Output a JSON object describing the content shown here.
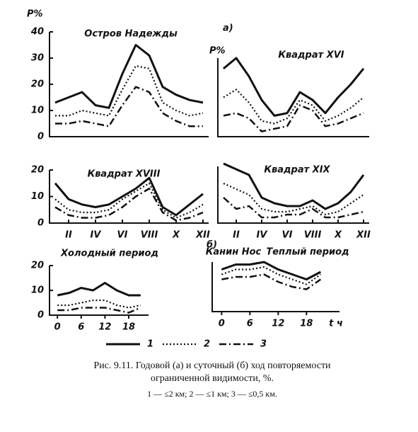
{
  "chart_data": [
    {
      "type": "line",
      "title": "Остров Надежды",
      "ylabel": "P%",
      "categories": [
        null,
        null,
        null,
        null,
        null,
        null,
        null,
        null,
        null,
        null,
        null,
        null
      ],
      "ylim": [
        0,
        40
      ],
      "yticks": [
        0,
        10,
        20,
        30,
        40
      ],
      "series": [
        {
          "name": "1",
          "color": "#111111",
          "style": "solid",
          "values": [
            13,
            15,
            17,
            12,
            11,
            24,
            35,
            31,
            19,
            16,
            14,
            13
          ]
        },
        {
          "name": "2",
          "color": "#111111",
          "style": "dotted",
          "values": [
            8,
            8,
            10,
            9,
            8,
            18,
            27,
            26,
            13,
            10,
            8,
            9
          ]
        },
        {
          "name": "3",
          "color": "#111111",
          "style": "dashdot",
          "values": [
            5,
            5,
            6,
            5,
            4,
            12,
            19,
            17,
            9,
            6,
            4,
            4
          ]
        }
      ]
    },
    {
      "type": "line",
      "title": "Квадрат XVI",
      "ylabel": "P%",
      "categories": [
        null,
        null,
        null,
        null,
        null,
        null,
        null,
        null,
        null,
        null,
        null,
        null
      ],
      "ylim": [
        0,
        30
      ],
      "series": [
        {
          "name": "1",
          "color": "#111111",
          "style": "solid",
          "values": [
            26,
            30,
            23,
            14,
            8,
            9,
            17,
            14,
            9,
            15,
            20,
            26
          ]
        },
        {
          "name": "2",
          "color": "#111111",
          "style": "dotted",
          "values": [
            15,
            18,
            13,
            6,
            5,
            7,
            14,
            12,
            6,
            8,
            11,
            15
          ]
        },
        {
          "name": "3",
          "color": "#111111",
          "style": "dashdot",
          "values": [
            8,
            9,
            7,
            2,
            3,
            4,
            12,
            10,
            4,
            5,
            7,
            9
          ]
        }
      ]
    },
    {
      "type": "line",
      "title": "Квадрат XVIII",
      "categories": [
        null,
        "II",
        null,
        "IV",
        null,
        "VI",
        null,
        "VIII",
        null,
        "X",
        null,
        "XII"
      ],
      "ylim": [
        0,
        20
      ],
      "yticks": [
        0,
        10,
        20
      ],
      "series": [
        {
          "name": "1",
          "color": "#111111",
          "style": "solid",
          "values": [
            15,
            9,
            7,
            6,
            7,
            10,
            13,
            17,
            6,
            3,
            7,
            11
          ]
        },
        {
          "name": "2",
          "color": "#111111",
          "style": "dotted",
          "values": [
            9,
            5,
            4,
            4,
            5,
            9,
            12,
            15,
            5,
            2,
            4,
            7
          ]
        },
        {
          "name": "3",
          "color": "#111111",
          "style": "dashdot",
          "values": [
            6,
            3,
            2,
            2,
            3,
            6,
            10,
            13,
            4,
            1,
            2,
            4
          ]
        }
      ]
    },
    {
      "type": "line",
      "title": "Квадрат XIX",
      "categories": [
        null,
        "II",
        null,
        "IV",
        null,
        "VI",
        null,
        "VIII",
        null,
        "X",
        null,
        "XII"
      ],
      "ylim": [
        0,
        20
      ],
      "series": [
        {
          "name": "1",
          "color": "#111111",
          "style": "solid",
          "values": [
            21,
            19,
            17,
            9,
            7,
            6,
            6,
            8,
            5,
            7,
            11,
            17
          ]
        },
        {
          "name": "2",
          "color": "#111111",
          "style": "dotted",
          "values": [
            14,
            12,
            10,
            5,
            4,
            4,
            5,
            6,
            3,
            4,
            7,
            10
          ]
        },
        {
          "name": "3",
          "color": "#111111",
          "style": "dashdot",
          "values": [
            9,
            5,
            6,
            2,
            2,
            3,
            3,
            5,
            2,
            2,
            3,
            4
          ]
        }
      ]
    },
    {
      "type": "line",
      "title": "Холодный период",
      "x": [
        0,
        3,
        6,
        9,
        12,
        15,
        18,
        21
      ],
      "xlim": [
        -2,
        23
      ],
      "xticks": [
        0,
        6,
        12,
        18
      ],
      "ylim": [
        0,
        20
      ],
      "yticks": [
        0,
        10,
        20
      ],
      "series": [
        {
          "name": "1",
          "color": "#111111",
          "style": "solid",
          "values": [
            8,
            9,
            11,
            10,
            13,
            10,
            8,
            8
          ]
        },
        {
          "name": "2",
          "color": "#111111",
          "style": "dotted",
          "values": [
            4,
            4,
            5,
            6,
            6,
            4,
            3,
            4
          ]
        },
        {
          "name": "3",
          "color": "#111111",
          "style": "dashdot",
          "values": [
            2,
            2,
            3,
            3,
            3,
            2,
            1,
            3
          ]
        }
      ]
    },
    {
      "type": "line",
      "title": "Теплый период",
      "annotation": "Канин Нос",
      "xlabel": "t ч",
      "x": [
        0,
        3,
        6,
        9,
        12,
        15,
        18,
        21
      ],
      "xlim": [
        -2,
        25
      ],
      "xticks": [
        0,
        6,
        12,
        18
      ],
      "ylim": [
        0,
        20
      ],
      "series": [
        {
          "name": "1",
          "color": "#111111",
          "style": "solid",
          "values": [
            17,
            19,
            19,
            20,
            17,
            15,
            13,
            16
          ]
        },
        {
          "name": "2",
          "color": "#111111",
          "style": "dotted",
          "values": [
            15,
            17,
            17,
            18,
            15,
            13,
            11,
            15
          ]
        },
        {
          "name": "3",
          "color": "#111111",
          "style": "dashdot",
          "values": [
            13,
            14,
            14,
            15,
            12,
            10,
            9,
            13
          ]
        }
      ]
    }
  ],
  "panel_labels": [
    "а)",
    "б)"
  ],
  "caption": [
    "Рис. 9.11. Годовой (а) и суточный (б) ход повторяемости",
    "ограниченной видимости, %.",
    "1 — ≤2 км; 2 — ≤1 км; 3 — ≤0,5 км."
  ]
}
